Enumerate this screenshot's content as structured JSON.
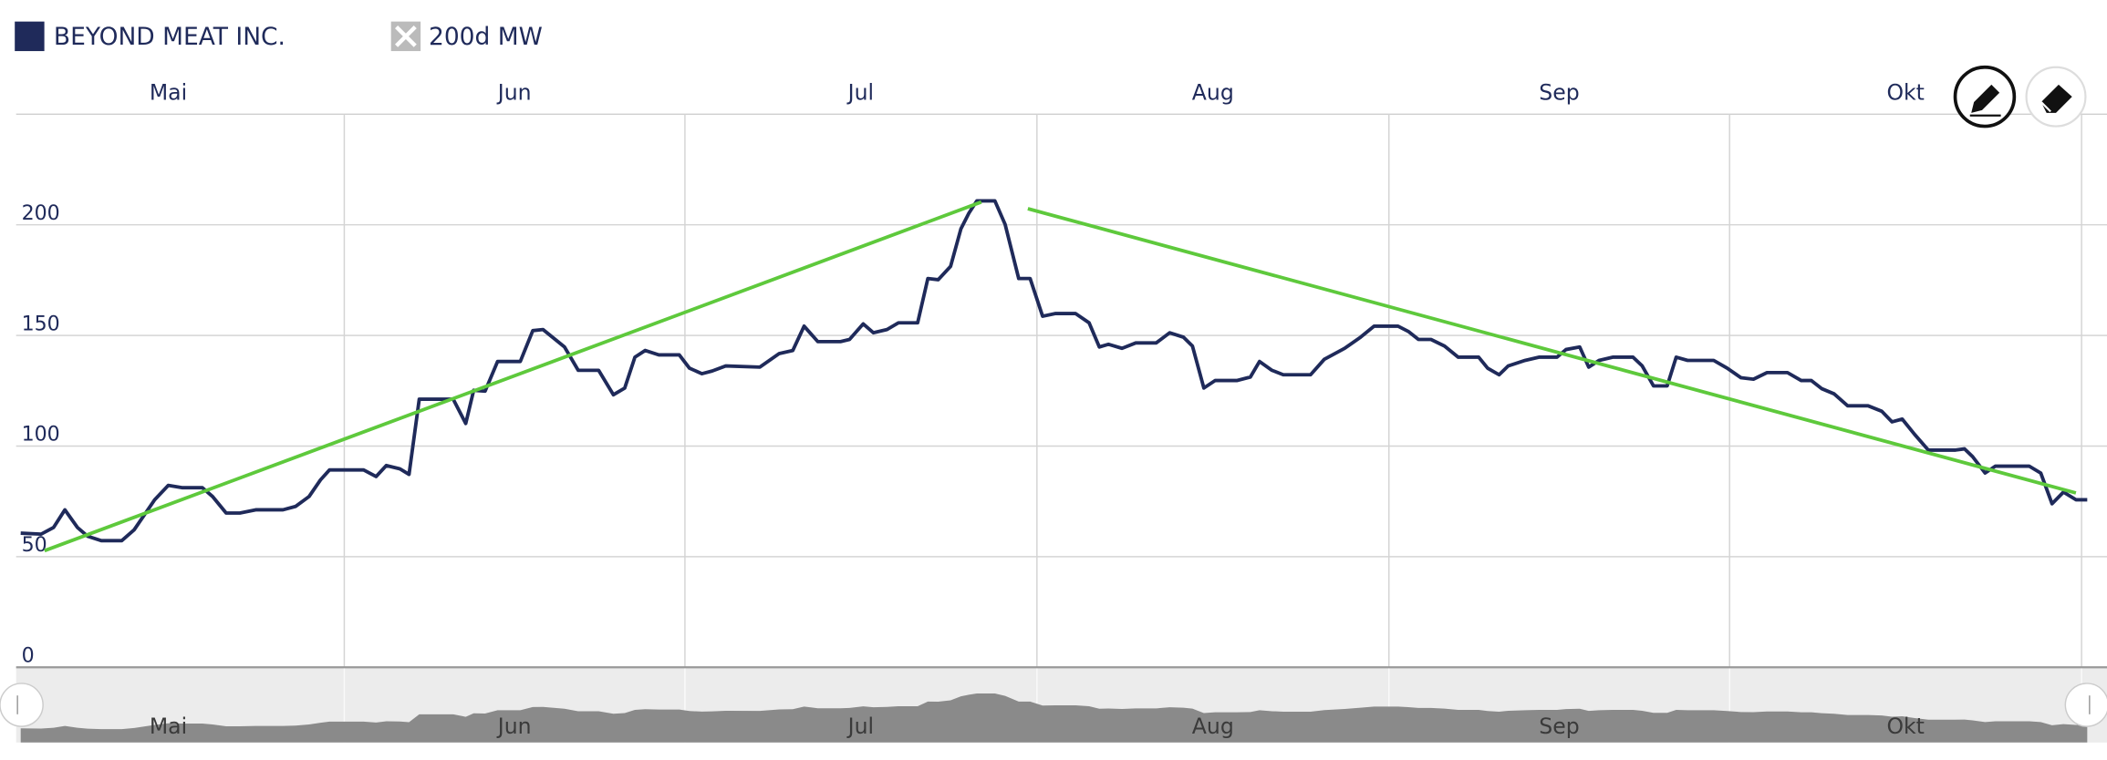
{
  "chart_data": {
    "type": "line",
    "series": [
      {
        "name": "BEYOND MEAT INC.",
        "color": "#1f2a5a",
        "x": [
          2.5,
          4.3,
          5.4,
          6.4,
          7.5,
          8.4,
          9.6,
          11.4,
          12.5,
          14.3,
          15.5,
          16.7,
          18.5,
          19.4,
          20.6,
          21.8,
          23.2,
          25.6,
          26.7,
          27.9,
          28.9,
          29.7,
          32.7,
          33.8,
          34.7,
          35.9,
          36.7,
          37.6,
          40.6,
          41.7,
          42.4,
          43.4,
          44.5,
          46.5,
          47.6,
          48.5,
          50.4,
          51.6,
          53.4,
          54.7,
          55.7,
          56.6,
          57.5,
          58.7,
          60.5,
          61.4,
          62.5,
          63.4,
          64.6,
          67.6,
          69.3,
          70.5,
          71.5,
          72.7,
          74.7,
          75.5,
          76.7,
          77.6,
          78.8,
          79.8,
          81.5,
          82.4,
          83.3,
          84.4,
          85.3,
          86.0,
          86.7,
          88.3,
          89.2,
          90.4,
          91.4,
          92.5,
          93.6,
          95.4,
          96.6,
          97.5,
          98.3,
          99.5,
          100.7,
          102.5,
          103.7,
          104.9,
          105.7,
          106.7,
          107.7,
          109.6,
          110.8,
          111.6,
          112.7,
          113.7,
          116.1,
          117.3,
          119.1,
          120.5,
          121.7,
          123.8,
          124.7,
          125.6,
          126.7,
          127.9,
          129.1,
          130.9,
          131.7,
          132.7,
          133.5,
          135.0,
          136.2,
          137.8,
          138.6,
          139.8,
          140.6,
          141.5,
          142.7,
          144.5,
          145.3,
          146.3,
          147.5,
          148.3,
          149.3,
          151.6,
          152.8,
          154.0,
          155.1,
          156.3,
          158.1,
          159.3,
          160.2,
          161.1,
          162.2,
          163.4,
          165.2,
          166.4,
          167.3,
          168.2,
          169.3,
          170.5,
          172.9,
          173.7,
          174.4,
          175.5,
          176.4,
          179.4,
          180.4,
          181.4,
          182.4,
          183.5,
          184.5
        ],
        "values": [
          60.6,
          60.2,
          63.2,
          71.2,
          63.2,
          59.2,
          57.2,
          57.2,
          62.2,
          75.7,
          82.2,
          81.2,
          81.2,
          77.2,
          69.7,
          69.7,
          71.2,
          71.2,
          72.7,
          77.2,
          84.7,
          89.2,
          89.2,
          86.2,
          91.2,
          89.7,
          87.2,
          121.2,
          121.2,
          110.2,
          125.2,
          124.8,
          138.2,
          138.2,
          152.2,
          152.7,
          144.8,
          134.2,
          134.2,
          123.2,
          126.2,
          140.2,
          143.2,
          141.2,
          141.2,
          135.2,
          132.7,
          133.9,
          136.2,
          135.7,
          141.8,
          143.2,
          154.2,
          147.2,
          147.2,
          148.2,
          155.2,
          151.2,
          152.7,
          155.7,
          155.7,
          175.7,
          175.2,
          181.2,
          198.2,
          205.2,
          210.8,
          210.8,
          200.2,
          175.7,
          175.7,
          158.7,
          159.9,
          159.9,
          155.7,
          144.8,
          146,
          144.2,
          146.6,
          146.6,
          151.2,
          149.2,
          145.2,
          126.2,
          129.6,
          129.6,
          131.2,
          138.2,
          134.2,
          132.2,
          132.2,
          139.2,
          144.2,
          149.2,
          154.2,
          154.2,
          151.8,
          148.2,
          148.2,
          145.2,
          140.2,
          140.2,
          135.2,
          132.2,
          136.2,
          138.7,
          140.2,
          140.2,
          143.6,
          144.8,
          135.7,
          138.7,
          140.2,
          140.2,
          136.2,
          127.2,
          127.2,
          140.2,
          138.7,
          138.7,
          135.2,
          130.9,
          130.2,
          133.2,
          133.2,
          129.6,
          129.6,
          126,
          123.6,
          118.2,
          118.2,
          115.7,
          110.9,
          112.2,
          105.2,
          98.2,
          98.2,
          98.7,
          95.2,
          87.8,
          90.9,
          90.9,
          87.8,
          73.9,
          79.2,
          75.7,
          75.7
        ]
      }
    ],
    "hidden_series": [
      {
        "name": "200d MW",
        "color": "#bbbbbb"
      }
    ],
    "trend_lines": [
      {
        "color": "#5ec93c",
        "x": [
          4.6,
          87.1
        ],
        "values": [
          52.7,
          210.3
        ]
      },
      {
        "color": "#5ec93c",
        "x": [
          91.2,
          183.5
        ],
        "values": [
          207.3,
          78.8
        ]
      }
    ],
    "xlim": [
      2.1,
      184.7
    ],
    "xticks": [
      {
        "value": 15.5,
        "label": "Mai"
      },
      {
        "value": 46,
        "label": "Jun"
      },
      {
        "value": 76.5,
        "label": "Jul"
      },
      {
        "value": 107.5,
        "label": "Aug"
      },
      {
        "value": 138,
        "label": "Sep"
      },
      {
        "value": 168.5,
        "label": "Okt"
      }
    ],
    "xgrid": [
      31,
      61,
      92,
      123,
      153,
      184
    ],
    "ylim": [
      0,
      250
    ],
    "yticks": [
      0,
      50,
      100,
      150,
      200
    ],
    "grid": true
  }
}
